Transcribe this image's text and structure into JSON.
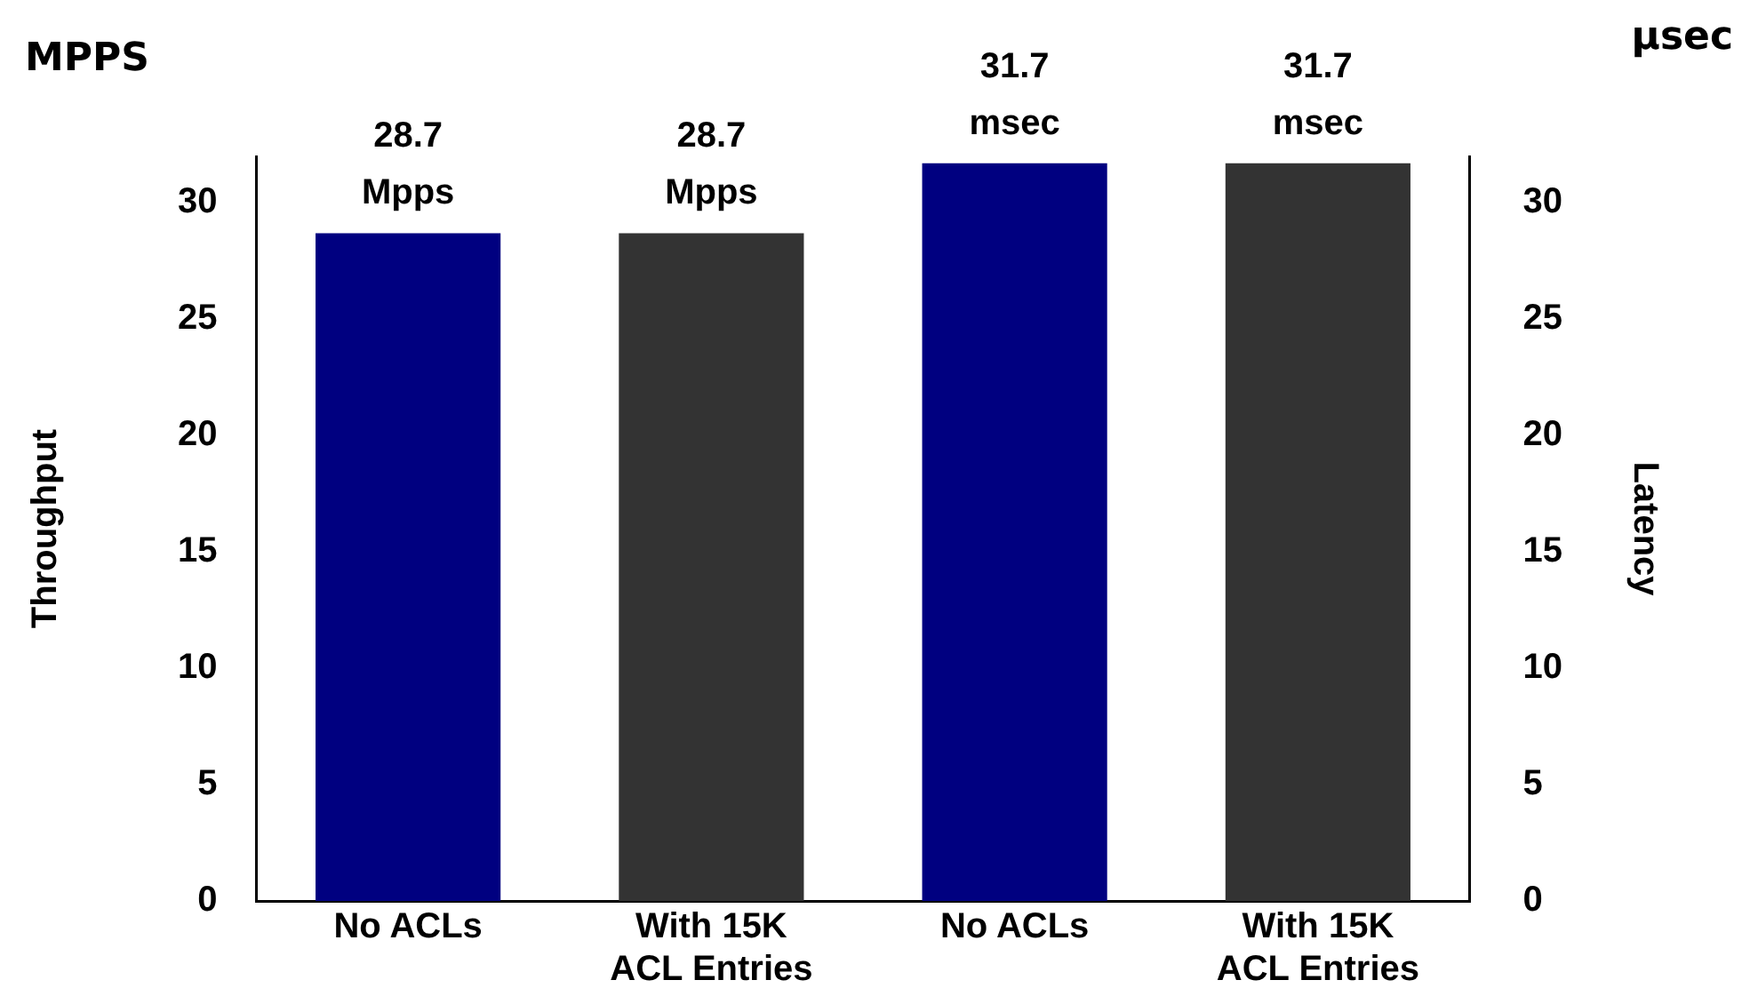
{
  "chart_data": {
    "type": "bar",
    "categories": [
      "No ACLs",
      "With 15K ACL Entries",
      "No ACLs",
      "With 15K ACL Entries"
    ],
    "ylabel": "Throughput",
    "y2label": "Latency",
    "annotations": [
      "MPPS",
      "μsec"
    ],
    "series": [
      {
        "colors": [
          "#000080",
          "#333333",
          "#000080",
          "#333333"
        ],
        "values": [
          28.7,
          28.7,
          null,
          null
        ],
        "value_labels": [
          "28.7 Mpps",
          "28.7 Mpps",
          null,
          null
        ]
      },
      {
        "colors": [
          "#000080",
          "#333333",
          "#000080",
          "#333333"
        ],
        "values": [
          null,
          null,
          31.7,
          31.7
        ],
        "value_labels": [
          null,
          null,
          "31.7 msec",
          "31.7 msec"
        ]
      }
    ],
    "ylim": [
      0,
      32
    ],
    "yticks": [
      0,
      5,
      10,
      15,
      20,
      25,
      30
    ],
    "y2lim": [
      0,
      32
    ],
    "y2ticks": [
      0,
      5,
      10,
      15,
      20,
      25,
      30
    ],
    "grid": false,
    "legend": false
  }
}
